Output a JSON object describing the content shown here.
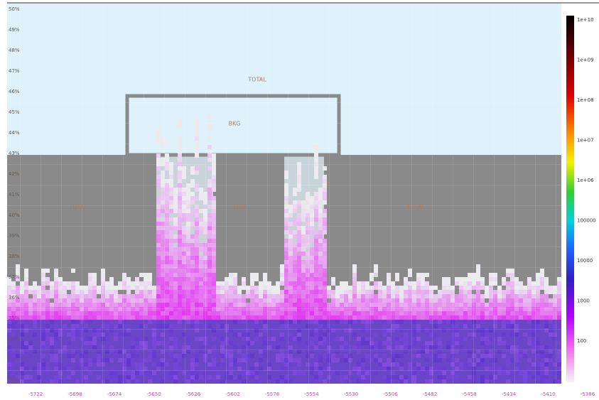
{
  "plot": {
    "y_labels": [
      "50%",
      "49%",
      "48%",
      "47%",
      "46%",
      "45%",
      "44%",
      "43%",
      "42%",
      "41%",
      "40%",
      "39%",
      "38%",
      "37%",
      "36%",
      "35%",
      "34%",
      "33%",
      "32%"
    ],
    "x_labels": [
      "-5722",
      "-5698",
      "-5674",
      "-5650",
      "-5626",
      "-5602",
      "-5578",
      "-5554",
      "-5530",
      "-5506",
      "-5482",
      "-5458",
      "-5434",
      "-5410",
      "-5386"
    ],
    "outer_label": "TOTAL",
    "box_label": "BKG",
    "region_labels": [
      "TOTAL",
      "TOTAL",
      "TOTAL"
    ],
    "colorbar_labels": [
      "1e+10",
      "1e+09",
      "1e+08",
      "1e+07",
      "1e+06",
      "100000",
      "10000",
      "1000",
      "100"
    ]
  }
}
